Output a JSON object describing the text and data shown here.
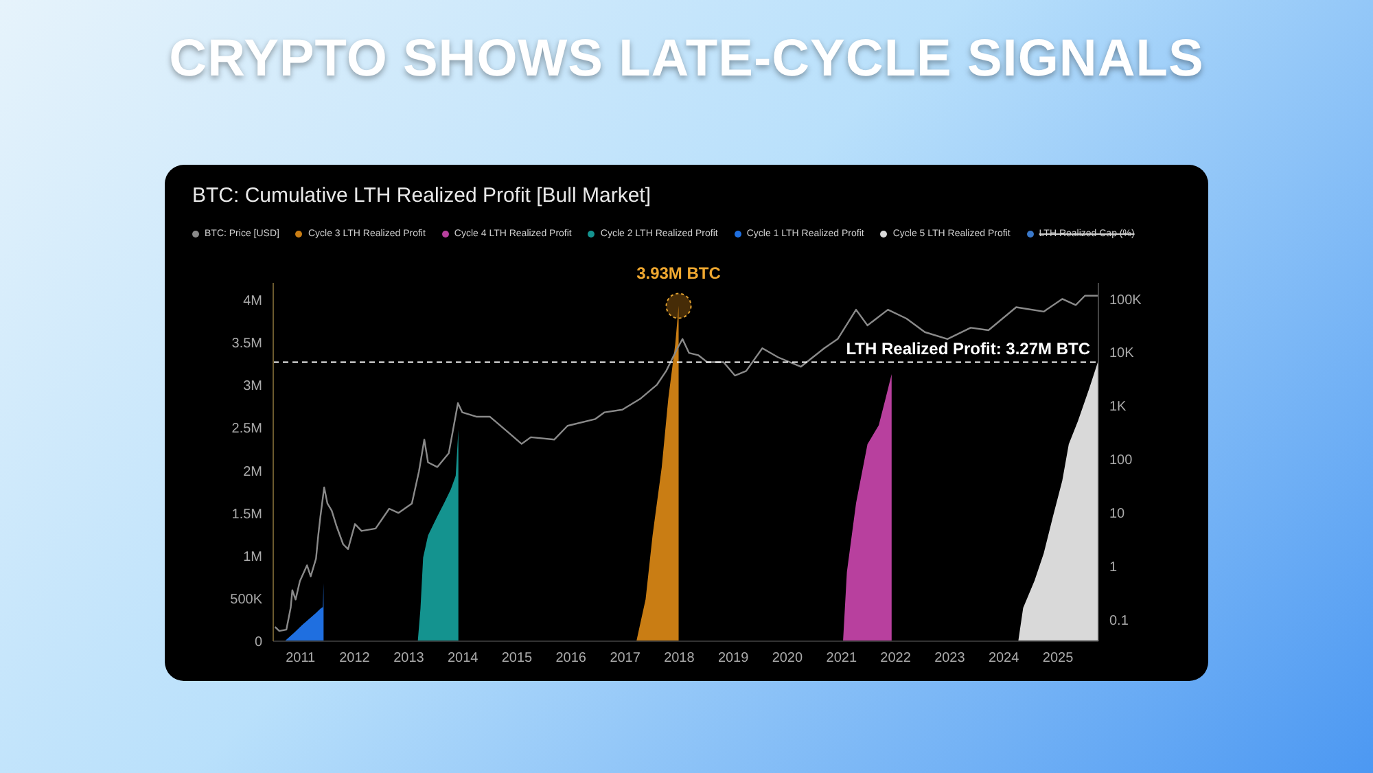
{
  "chart_data": {
    "type": "area",
    "title": "CRYPTO SHOWS LATE-CYCLE SIGNALS",
    "subtitle": "BTC: Cumulative LTH Realized Profit [Bull Market]",
    "xlim": [
      "2010-07-01",
      "2025-10-01"
    ],
    "xticks": [
      "2011",
      "2012",
      "2013",
      "2014",
      "2015",
      "2016",
      "2017",
      "2018",
      "2019",
      "2020",
      "2021",
      "2022",
      "2023",
      "2024",
      "2025"
    ],
    "ylim": [
      0,
      4200000
    ],
    "yticks": [
      0,
      {
        "value": 500000,
        "label": "500K"
      },
      {
        "value": 1000000,
        "label": "1M"
      },
      {
        "value": 1500000,
        "label": "1.5M"
      },
      {
        "value": 2000000,
        "label": "2M"
      },
      {
        "value": 2500000,
        "label": "2.5M"
      },
      {
        "value": 3000000,
        "label": "3M"
      },
      {
        "value": 3500000,
        "label": "3.5M"
      },
      {
        "value": 4000000,
        "label": "4M"
      }
    ],
    "y2lim": [
      0.04,
      200000
    ],
    "y2ticks": [
      0.1,
      1,
      10,
      100,
      {
        "value": 1000,
        "label": "1K"
      },
      {
        "value": 10000,
        "label": "10K"
      },
      {
        "value": 100000,
        "label": "100K"
      }
    ],
    "log": "y2",
    "grid": false,
    "legend": "top",
    "series": [
      {
        "name": "BTC: Price [USD]",
        "type": "line",
        "axis": "y2",
        "color": "#8a8a8a",
        "x": [
          "2010-07-13",
          "2010-08-11",
          "2010-09-28",
          "2010-10-27",
          "2010-11-07",
          "2010-11-29",
          "2010-12-28",
          "2011-02-14",
          "2011-03-11",
          "2011-04-16",
          "2011-05-01",
          "2011-05-15",
          "2011-06-10",
          "2011-07-02",
          "2011-07-31",
          "2011-09-02",
          "2011-10-16",
          "2011-11-18",
          "2012-01-04",
          "2012-02-17",
          "2012-05-22",
          "2012-08-22",
          "2012-10-23",
          "2013-01-22",
          "2013-03-11",
          "2013-04-16",
          "2013-05-11",
          "2013-07-13",
          "2013-09-28",
          "2013-11-29",
          "2013-12-28",
          "2014-04-02",
          "2014-07-02",
          "2014-10-19",
          "2015-02-02",
          "2015-04-05",
          "2015-09-10",
          "2015-12-09",
          "2016-06-14",
          "2016-08-15",
          "2016-12-13",
          "2017-04-16",
          "2017-08-04",
          "2017-10-05",
          "2017-12-20",
          "2018-01-23",
          "2018-03-08",
          "2018-05-09",
          "2018-07-09",
          "2018-10-27",
          "2019-01-12",
          "2019-03-29",
          "2019-07-16",
          "2019-10-31",
          "2020-04-01",
          "2020-09-06",
          "2020-12-06",
          "2021-04-09",
          "2021-06-25",
          "2021-11-10",
          "2022-03-15",
          "2022-07-17",
          "2022-12-17",
          "2023-05-23",
          "2023-09-20",
          "2024-03-25",
          "2024-09-27",
          "2025-01-30",
          "2025-05-01",
          "2025-07-02",
          "2025-09-27"
        ],
        "values": [
          0.074,
          0.062,
          0.066,
          0.17,
          0.36,
          0.24,
          0.53,
          1.05,
          0.65,
          1.4,
          3.8,
          8.3,
          30,
          15,
          11,
          5.6,
          2.6,
          2.1,
          6.2,
          4.6,
          5.1,
          12,
          10,
          15,
          60,
          235,
          88,
          72,
          130,
          1130,
          760,
          630,
          630,
          350,
          195,
          260,
          235,
          425,
          570,
          760,
          850,
          1380,
          2500,
          4500,
          12000,
          17800,
          9800,
          8900,
          6600,
          6600,
          3700,
          4500,
          12000,
          8100,
          5400,
          12000,
          17800,
          63000,
          32000,
          63000,
          43000,
          24000,
          17800,
          29000,
          26000,
          70000,
          58000,
          100000,
          77000,
          115000,
          115000
        ]
      },
      {
        "name": "Cycle 3 LTH Realized Profit",
        "color": "#c97d14",
        "x": [
          "2017-03-18",
          "2017-05-19",
          "2017-07-05",
          "2017-09-05",
          "2017-10-19",
          "2017-12-05",
          "2017-12-28"
        ],
        "values": [
          0,
          490000,
          1240000,
          2040000,
          2840000,
          3480000,
          3930000
        ]
      },
      {
        "name": "Cycle 4 LTH Realized Profit",
        "color": "#b8409e",
        "x": [
          "2021-01-11",
          "2021-02-06",
          "2021-04-09",
          "2021-06-25",
          "2021-09-09",
          "2021-10-26",
          "2021-12-05"
        ],
        "values": [
          0,
          810000,
          1620000,
          2310000,
          2530000,
          2850000,
          3130000
        ]
      },
      {
        "name": "Cycle 2 LTH Realized Profit",
        "color": "#14938f",
        "x": [
          "2013-03-03",
          "2013-03-21",
          "2013-04-08",
          "2013-05-11",
          "2013-07-12",
          "2013-08-28",
          "2013-10-12",
          "2013-11-14",
          "2013-12-02"
        ],
        "values": [
          0,
          380000,
          980000,
          1240000,
          1460000,
          1620000,
          1780000,
          1940000,
          2480000
        ]
      },
      {
        "name": "Cycle 1 LTH Realized Profit",
        "color": "#1f6fe0",
        "x": [
          "2010-09-16",
          "2010-11-20",
          "2011-01-12",
          "2011-04-15",
          "2011-05-15",
          "2011-06-01",
          "2011-06-06"
        ],
        "values": [
          0,
          100000,
          190000,
          330000,
          380000,
          400000,
          680000
        ]
      },
      {
        "name": "Cycle 5 LTH Realized Profit",
        "color": "#d9d9d9",
        "x": [
          "2024-04-08",
          "2024-05-11",
          "2024-07-27",
          "2024-09-27",
          "2024-11-28",
          "2025-01-30",
          "2025-03-15",
          "2025-05-16",
          "2025-07-31",
          "2025-09-27"
        ],
        "values": [
          0,
          390000,
          710000,
          1030000,
          1460000,
          1880000,
          2310000,
          2580000,
          2960000,
          3270000
        ]
      },
      {
        "name": "LTH Realized Cap (%)",
        "color": "#3a78c9"
      }
    ],
    "ref_lines": [
      {
        "axis": "y",
        "value": 3270000,
        "label": "LTH Realized Profit: 3.27M BTC",
        "color": "#ffffff",
        "line_style": "dashed"
      }
    ],
    "annotations": [
      {
        "text": "3.93M BTC",
        "x": "2017-12-28",
        "y": 3930000
      }
    ]
  }
}
